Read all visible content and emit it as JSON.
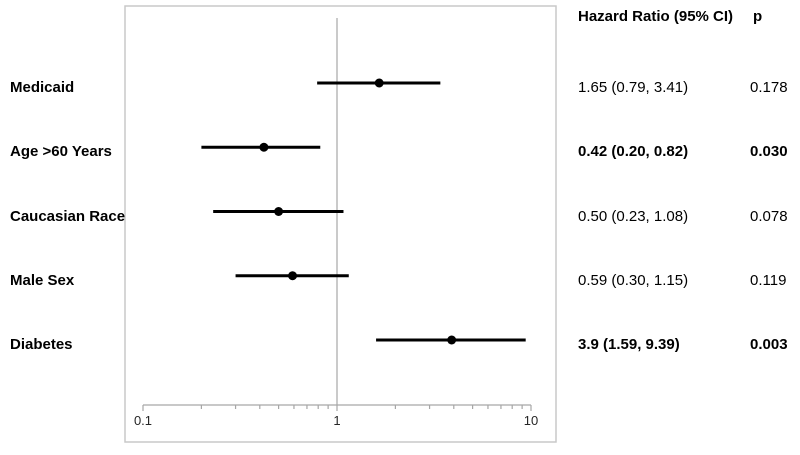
{
  "figure": {
    "columns": {
      "hr_header": "Hazard Ratio (95% CI)",
      "p_header": "p"
    }
  },
  "chart_data": {
    "type": "forest",
    "x_scale": "log10",
    "xlim": [
      0.1,
      10
    ],
    "x_ticks_major": [
      0.1,
      1,
      10
    ],
    "x_tick_labels": [
      "0.1",
      "1",
      "10"
    ],
    "x_ticks_minor": [
      0.2,
      0.3,
      0.4,
      0.5,
      0.6,
      0.7,
      0.8,
      0.9,
      2,
      3,
      4,
      5,
      6,
      7,
      8,
      9
    ],
    "reference_line_x": 1,
    "rows": [
      {
        "label": "Medicaid",
        "hr": 1.65,
        "ci_low": 0.79,
        "ci_high": 3.41,
        "hr_ci_text": "1.65 (0.79, 3.41)",
        "p_text": "0.178",
        "significant": false
      },
      {
        "label": "Age >60 Years",
        "hr": 0.42,
        "ci_low": 0.2,
        "ci_high": 0.82,
        "hr_ci_text": "0.42 (0.20, 0.82)",
        "p_text": "0.030",
        "significant": true
      },
      {
        "label": "Caucasian Race",
        "hr": 0.5,
        "ci_low": 0.23,
        "ci_high": 1.08,
        "hr_ci_text": "0.50 (0.23, 1.08)",
        "p_text": "0.078",
        "significant": false
      },
      {
        "label": "Male Sex",
        "hr": 0.59,
        "ci_low": 0.3,
        "ci_high": 1.15,
        "hr_ci_text": "0.59 (0.30, 1.15)",
        "p_text": "0.119",
        "significant": false
      },
      {
        "label": "Diabetes",
        "hr": 3.9,
        "ci_low": 1.59,
        "ci_high": 9.39,
        "hr_ci_text": "3.9 (1.59, 9.39)",
        "p_text": "0.003",
        "significant": true
      }
    ],
    "colors": {
      "marker": "#000000",
      "ci_line": "#000000",
      "axis": "#a6a6a6",
      "reference_line": "#b8b8b8",
      "plot_border": "#c9c9c9",
      "text": "#000000",
      "tick_label": "#262626"
    },
    "legend": null,
    "title": "",
    "xlabel": "",
    "ylabel": ""
  }
}
